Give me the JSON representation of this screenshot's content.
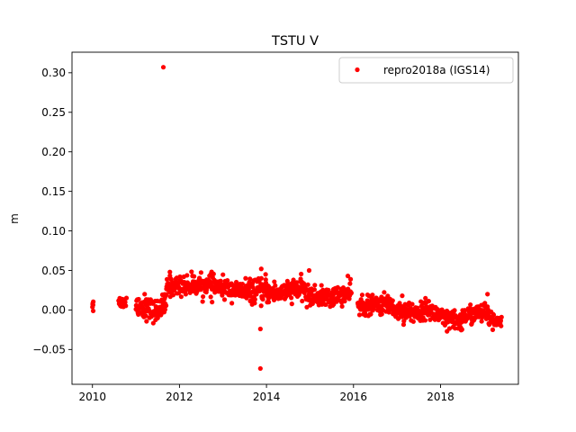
{
  "chart_data": {
    "type": "scatter",
    "title": "TSTU V",
    "xlabel": "",
    "ylabel": "m",
    "xlim": [
      2009.53,
      2019.79
    ],
    "ylim": [
      -0.094,
      0.326
    ],
    "x_ticks": [
      2010,
      2012,
      2014,
      2016,
      2018
    ],
    "x_tick_labels": [
      "2010",
      "2012",
      "2014",
      "2016",
      "2018"
    ],
    "y_ticks": [
      -0.05,
      0.0,
      0.05,
      0.1,
      0.15,
      0.2,
      0.25,
      0.3
    ],
    "y_tick_labels": [
      "−0.05",
      "0.00",
      "0.05",
      "0.10",
      "0.15",
      "0.20",
      "0.25",
      "0.30"
    ],
    "grid": false,
    "legend": {
      "position": "top-right"
    },
    "series": [
      {
        "name": "repro2018a (IGS14)",
        "color": "#ff0000",
        "marker": "circle",
        "segments": [
          {
            "x0": 2010.0,
            "x1": 2010.02,
            "n": 6,
            "y0": 0.01,
            "y1": 0.008,
            "noise": 0.006
          },
          {
            "x0": 2010.6,
            "x1": 2010.78,
            "n": 14,
            "y0": 0.01,
            "y1": 0.01,
            "noise": 0.004
          },
          {
            "x0": 2011.0,
            "x1": 2011.45,
            "n": 60,
            "y0": 0.008,
            "y1": -0.002,
            "noise": 0.007
          },
          {
            "x0": 2011.45,
            "x1": 2011.7,
            "n": 40,
            "y0": -0.002,
            "y1": 0.008,
            "noise": 0.007
          },
          {
            "x0": 2011.7,
            "x1": 2012.8,
            "n": 150,
            "y0": 0.03,
            "y1": 0.032,
            "noise": 0.006
          },
          {
            "x0": 2012.8,
            "x1": 2013.6,
            "n": 110,
            "y0": 0.03,
            "y1": 0.022,
            "noise": 0.006
          },
          {
            "x0": 2013.6,
            "x1": 2014.3,
            "n": 100,
            "y0": 0.024,
            "y1": 0.022,
            "noise": 0.007
          },
          {
            "x0": 2014.3,
            "x1": 2014.9,
            "n": 90,
            "y0": 0.022,
            "y1": 0.028,
            "noise": 0.006
          },
          {
            "x0": 2014.9,
            "x1": 2015.5,
            "n": 90,
            "y0": 0.018,
            "y1": 0.015,
            "noise": 0.006
          },
          {
            "x0": 2015.5,
            "x1": 2015.95,
            "n": 60,
            "y0": 0.018,
            "y1": 0.02,
            "noise": 0.006
          },
          {
            "x0": 2016.1,
            "x1": 2016.9,
            "n": 120,
            "y0": 0.004,
            "y1": 0.008,
            "noise": 0.006
          },
          {
            "x0": 2016.9,
            "x1": 2017.6,
            "n": 110,
            "y0": 0.0,
            "y1": -0.004,
            "noise": 0.006
          },
          {
            "x0": 2017.6,
            "x1": 2018.0,
            "n": 60,
            "y0": 0.004,
            "y1": -0.008,
            "noise": 0.006
          },
          {
            "x0": 2018.0,
            "x1": 2018.5,
            "n": 80,
            "y0": -0.01,
            "y1": -0.016,
            "noise": 0.006
          },
          {
            "x0": 2018.5,
            "x1": 2019.1,
            "n": 90,
            "y0": -0.008,
            "y1": -0.002,
            "noise": 0.006
          },
          {
            "x0": 2019.1,
            "x1": 2019.4,
            "n": 40,
            "y0": -0.014,
            "y1": -0.012,
            "noise": 0.005
          }
        ],
        "points": [
          [
            2011.63,
            0.307
          ],
          [
            2013.86,
            -0.074
          ],
          [
            2013.86,
            -0.024
          ],
          [
            2013.88,
            0.052
          ],
          [
            2014.98,
            0.05
          ],
          [
            2015.87,
            0.043
          ],
          [
            2012.3,
            0.043
          ],
          [
            2011.78,
            0.048
          ],
          [
            2013.98,
            0.045
          ],
          [
            2019.08,
            0.02
          ],
          [
            2016.2,
            0.019
          ],
          [
            2017.12,
            0.018
          ],
          [
            2012.1,
            0.042
          ],
          [
            2011.2,
            0.02
          ],
          [
            2014.62,
            0.038
          ],
          [
            2019.2,
            -0.025
          ],
          [
            2018.15,
            -0.027
          ],
          [
            2012.75,
            0.01
          ],
          [
            2013.52,
            0.04
          ]
        ]
      }
    ]
  }
}
